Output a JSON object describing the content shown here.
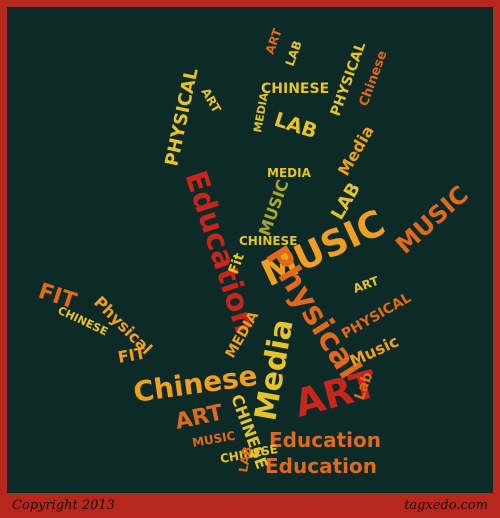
{
  "colors": {
    "frame": "#b8271d",
    "background": "#0e2a28",
    "palette": [
      "#c8261a",
      "#e06a1c",
      "#f0a020",
      "#e6c429",
      "#a8a82a",
      "#7f9a2a"
    ]
  },
  "cloud": {
    "words": [
      "Education",
      "MUSIC",
      "Physical",
      "Chinese",
      "Media",
      "ART",
      "FIT",
      "LAB",
      "CHINESE",
      "PHYSICAL",
      "Lab",
      "Music",
      "Fit",
      "EDUCATION",
      "MEDIA",
      "Art",
      "Physical",
      "Education"
    ]
  },
  "footer": {
    "copyright": "Copyright 2013",
    "brand": "tagxedo.com"
  }
}
